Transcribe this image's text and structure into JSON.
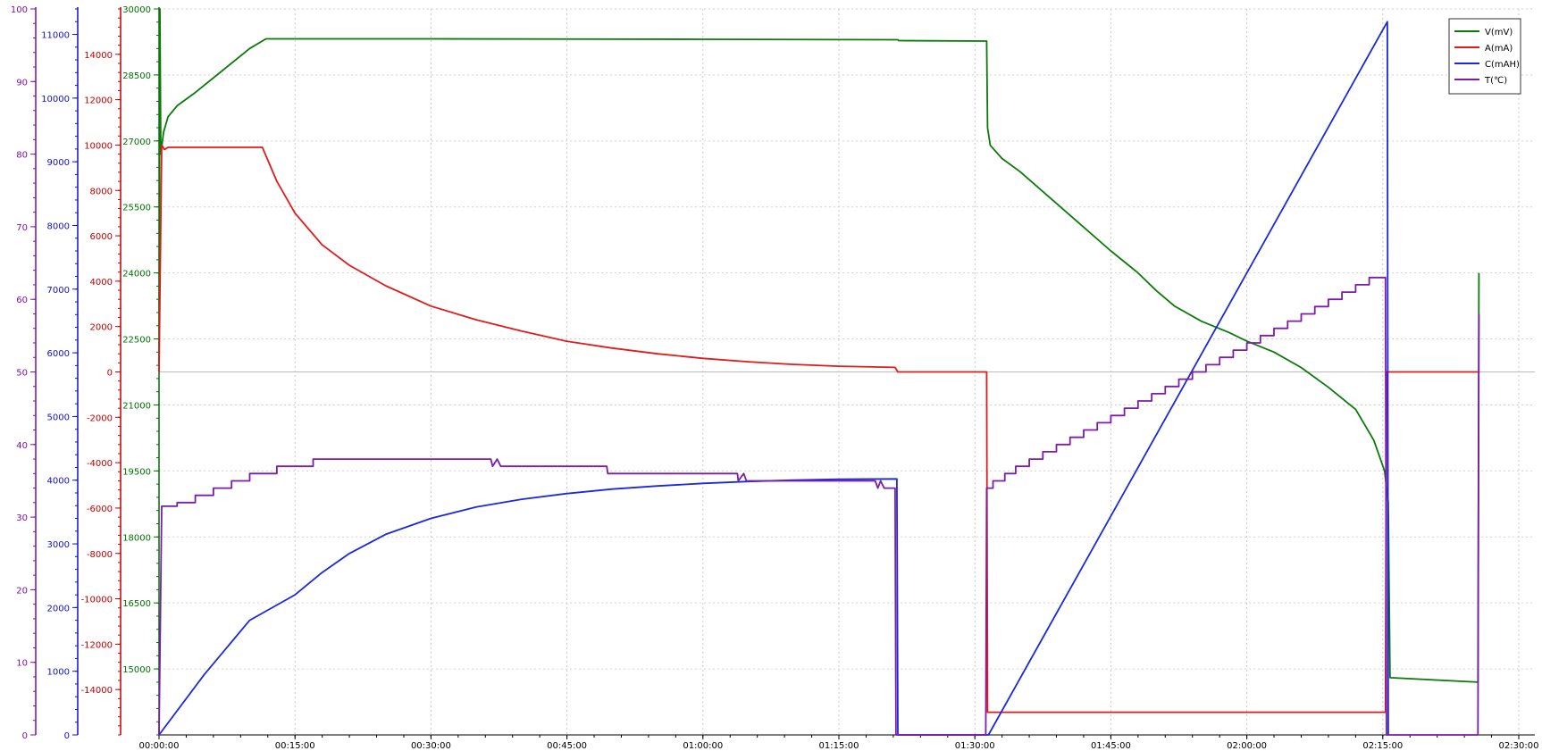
{
  "chart_data": {
    "type": "line",
    "x_ticks": [
      "00:00:00",
      "00:15:00",
      "00:30:00",
      "00:45:00",
      "01:00:00",
      "01:15:00",
      "01:30:00",
      "01:45:00",
      "02:00:00",
      "02:15:00",
      "02:30:00"
    ],
    "x_range_minutes": [
      0,
      152
    ],
    "grid": true,
    "legend_position": "top-right",
    "axes": {
      "temperature": {
        "color": "#7b0fa8",
        "range": [
          0,
          100
        ],
        "ticks": [
          0,
          10,
          20,
          30,
          40,
          50,
          60,
          70,
          80,
          90,
          100
        ]
      },
      "capacity": {
        "color": "#1010cc",
        "range": [
          0,
          11400
        ],
        "ticks": [
          0,
          1000,
          2000,
          3000,
          4000,
          5000,
          6000,
          7000,
          8000,
          9000,
          10000,
          11000
        ]
      },
      "current": {
        "color": "#c00000",
        "range": [
          -16000,
          16000
        ],
        "ticks": [
          -14000,
          -12000,
          -10000,
          -8000,
          -6000,
          -4000,
          -2000,
          0,
          2000,
          4000,
          6000,
          8000,
          10000,
          12000,
          14000
        ]
      },
      "voltage": {
        "color": "#007000",
        "range": [
          13500,
          30000
        ],
        "ticks": [
          15000,
          16500,
          18000,
          19500,
          21000,
          22500,
          24000,
          25500,
          27000,
          28500,
          30000
        ]
      }
    },
    "series": [
      {
        "name": "V(mV)",
        "axis": "voltage",
        "color": "#0b7a0b",
        "points": [
          [
            0,
            21900
          ],
          [
            0.1,
            30000
          ],
          [
            0.2,
            26700
          ],
          [
            0.5,
            27200
          ],
          [
            1,
            27550
          ],
          [
            2,
            27800
          ],
          [
            4,
            28100
          ],
          [
            7,
            28600
          ],
          [
            10,
            29100
          ],
          [
            11.8,
            29320
          ],
          [
            30,
            29320
          ],
          [
            60,
            29310
          ],
          [
            81.5,
            29300
          ],
          [
            81.6,
            29280
          ],
          [
            91.3,
            29270
          ],
          [
            91.4,
            27300
          ],
          [
            91.7,
            26900
          ],
          [
            93,
            26600
          ],
          [
            95,
            26300
          ],
          [
            100,
            25400
          ],
          [
            105,
            24500
          ],
          [
            108,
            24000
          ],
          [
            110,
            23600
          ],
          [
            112,
            23250
          ],
          [
            115,
            22900
          ],
          [
            118,
            22650
          ],
          [
            120,
            22450
          ],
          [
            123,
            22200
          ],
          [
            126,
            21850
          ],
          [
            129,
            21400
          ],
          [
            132,
            20900
          ],
          [
            134,
            20200
          ],
          [
            135.2,
            19500
          ],
          [
            135.6,
            18800
          ],
          [
            135.8,
            14800
          ],
          [
            145.5,
            14700
          ],
          [
            145.6,
            24000
          ]
        ]
      },
      {
        "name": "A(mA)",
        "axis": "current",
        "color": "#e01b1b",
        "points": [
          [
            0,
            0
          ],
          [
            0.3,
            10000
          ],
          [
            0.6,
            9800
          ],
          [
            1,
            9900
          ],
          [
            11.4,
            9900
          ],
          [
            13,
            8400
          ],
          [
            15,
            7000
          ],
          [
            18,
            5600
          ],
          [
            21,
            4700
          ],
          [
            25,
            3800
          ],
          [
            30,
            2900
          ],
          [
            35,
            2300
          ],
          [
            40,
            1800
          ],
          [
            45,
            1350
          ],
          [
            50,
            1050
          ],
          [
            55,
            800
          ],
          [
            60,
            600
          ],
          [
            65,
            450
          ],
          [
            70,
            330
          ],
          [
            75,
            250
          ],
          [
            81.2,
            200
          ],
          [
            81.5,
            0
          ],
          [
            91.3,
            0
          ],
          [
            91.4,
            -15000
          ],
          [
            135.3,
            -15000
          ],
          [
            135.4,
            0
          ],
          [
            145.5,
            0
          ]
        ]
      },
      {
        "name": "C(mAH)",
        "axis": "capacity",
        "color": "#1a28e0",
        "points": [
          [
            0,
            0
          ],
          [
            5,
            950
          ],
          [
            10,
            1800
          ],
          [
            15,
            2200
          ],
          [
            18,
            2550
          ],
          [
            21,
            2850
          ],
          [
            25,
            3150
          ],
          [
            30,
            3400
          ],
          [
            35,
            3580
          ],
          [
            40,
            3700
          ],
          [
            45,
            3790
          ],
          [
            50,
            3860
          ],
          [
            55,
            3910
          ],
          [
            60,
            3950
          ],
          [
            65,
            3980
          ],
          [
            70,
            4000
          ],
          [
            75,
            4015
          ],
          [
            81.4,
            4020
          ],
          [
            81.5,
            0
          ],
          [
            91.5,
            0
          ],
          [
            135.5,
            11200
          ],
          [
            135.6,
            0
          ]
        ]
      },
      {
        "name": "T(℃)",
        "axis": "temperature",
        "color": "#7d1ca6",
        "points": [
          [
            0,
            0
          ],
          [
            0.3,
            31.5
          ],
          [
            2,
            31.5
          ],
          [
            2,
            32
          ],
          [
            4,
            32
          ],
          [
            4,
            33
          ],
          [
            6,
            33
          ],
          [
            6,
            34
          ],
          [
            8,
            34
          ],
          [
            8,
            35
          ],
          [
            10,
            35
          ],
          [
            10,
            36
          ],
          [
            13,
            36
          ],
          [
            13,
            37
          ],
          [
            17,
            37
          ],
          [
            17,
            38
          ],
          [
            26,
            38
          ],
          [
            36.6,
            38
          ],
          [
            36.8,
            37
          ],
          [
            37.3,
            38
          ],
          [
            37.7,
            37
          ],
          [
            49.4,
            37
          ],
          [
            49.5,
            36
          ],
          [
            63.8,
            36
          ],
          [
            63.9,
            35
          ],
          [
            64.5,
            36
          ],
          [
            64.8,
            35
          ],
          [
            79,
            35
          ],
          [
            79.3,
            34
          ],
          [
            79.6,
            35
          ],
          [
            80,
            34
          ],
          [
            81.2,
            34
          ],
          [
            81.3,
            0
          ],
          [
            91.2,
            0
          ],
          [
            91.3,
            34
          ],
          [
            92,
            34
          ],
          [
            92,
            35
          ],
          [
            93.3,
            35
          ],
          [
            93.3,
            36
          ],
          [
            94.5,
            36
          ],
          [
            94.5,
            37
          ],
          [
            96,
            37
          ],
          [
            96,
            38
          ],
          [
            97.5,
            38
          ],
          [
            97.5,
            39
          ],
          [
            99,
            39
          ],
          [
            99,
            40
          ],
          [
            100.5,
            40
          ],
          [
            100.5,
            41
          ],
          [
            102,
            41
          ],
          [
            102,
            42
          ],
          [
            103.5,
            42
          ],
          [
            103.5,
            43
          ],
          [
            105,
            43
          ],
          [
            105,
            44
          ],
          [
            106.5,
            44
          ],
          [
            106.5,
            45
          ],
          [
            108,
            45
          ],
          [
            108,
            46
          ],
          [
            109.5,
            46
          ],
          [
            109.5,
            47
          ],
          [
            111,
            47
          ],
          [
            111,
            48
          ],
          [
            112.5,
            48
          ],
          [
            112.5,
            49
          ],
          [
            114,
            49
          ],
          [
            114,
            50
          ],
          [
            115.5,
            50
          ],
          [
            115.5,
            51
          ],
          [
            117,
            51
          ],
          [
            117,
            52
          ],
          [
            118.5,
            52
          ],
          [
            118.5,
            53
          ],
          [
            120,
            53
          ],
          [
            120,
            54
          ],
          [
            121.5,
            54
          ],
          [
            121.5,
            55
          ],
          [
            123,
            55
          ],
          [
            123,
            56
          ],
          [
            124.5,
            56
          ],
          [
            124.5,
            57
          ],
          [
            126,
            57
          ],
          [
            126,
            58
          ],
          [
            127.5,
            58
          ],
          [
            127.5,
            59
          ],
          [
            129,
            59
          ],
          [
            129,
            60
          ],
          [
            130.5,
            60
          ],
          [
            130.5,
            61
          ],
          [
            132,
            61
          ],
          [
            132,
            62
          ],
          [
            133.5,
            62
          ],
          [
            133.5,
            63
          ],
          [
            135,
            63
          ],
          [
            135.3,
            63
          ],
          [
            135.4,
            0
          ],
          [
            145.5,
            0
          ],
          [
            145.6,
            58
          ]
        ]
      }
    ]
  }
}
